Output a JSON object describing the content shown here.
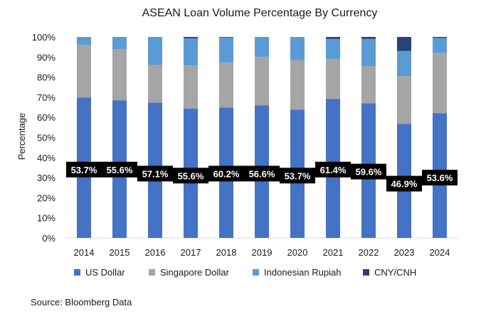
{
  "chart_data": {
    "type": "bar",
    "stacked": true,
    "title": "ASEAN Loan Volume Percentage By Currency",
    "ylabel": "Percentage",
    "xlabel": "",
    "ylim": [
      0,
      100
    ],
    "yticks": [
      "0%",
      "10%",
      "20%",
      "30%",
      "40%",
      "50%",
      "60%",
      "70%",
      "80%",
      "90%",
      "100%"
    ],
    "grid": false,
    "legend_position": "bottom",
    "categories": [
      "2014",
      "2015",
      "2016",
      "2017",
      "2018",
      "2019",
      "2020",
      "2021",
      "2022",
      "2023",
      "2024"
    ],
    "series": [
      {
        "name": "US Dollar",
        "color": "#4472c4",
        "values": [
          69.8,
          68.5,
          67.3,
          64.3,
          64.9,
          66.0,
          63.8,
          69.2,
          67.0,
          56.7,
          62.0
        ]
      },
      {
        "name": "Singapore Dollar",
        "color": "#a5a5a5",
        "values": [
          26.2,
          25.5,
          18.7,
          21.5,
          22.3,
          24.0,
          24.7,
          19.8,
          18.5,
          23.8,
          30.1
        ]
      },
      {
        "name": "Indonesian Rupiah",
        "color": "#5b9bd5",
        "values": [
          4.0,
          6.0,
          14.0,
          13.5,
          12.5,
          10.0,
          11.5,
          10.0,
          13.5,
          12.5,
          7.4
        ]
      },
      {
        "name": "CNY/CNH",
        "color": "#264478",
        "values": [
          0,
          0,
          0,
          0.7,
          0.3,
          0,
          0,
          1.0,
          1.0,
          7.0,
          0.5
        ]
      }
    ],
    "annotations": [
      "53.7%",
      "55.6%",
      "57.1%",
      "55.6%",
      "60.2%",
      "56.6%",
      "53.7%",
      "61.4%",
      "59.6%",
      "46.9%",
      "53.6%"
    ],
    "annotation_values": [
      34,
      34,
      32,
      31,
      32,
      32,
      31,
      34,
      33,
      27,
      30
    ]
  },
  "source": "Source: Bloomberg Data"
}
